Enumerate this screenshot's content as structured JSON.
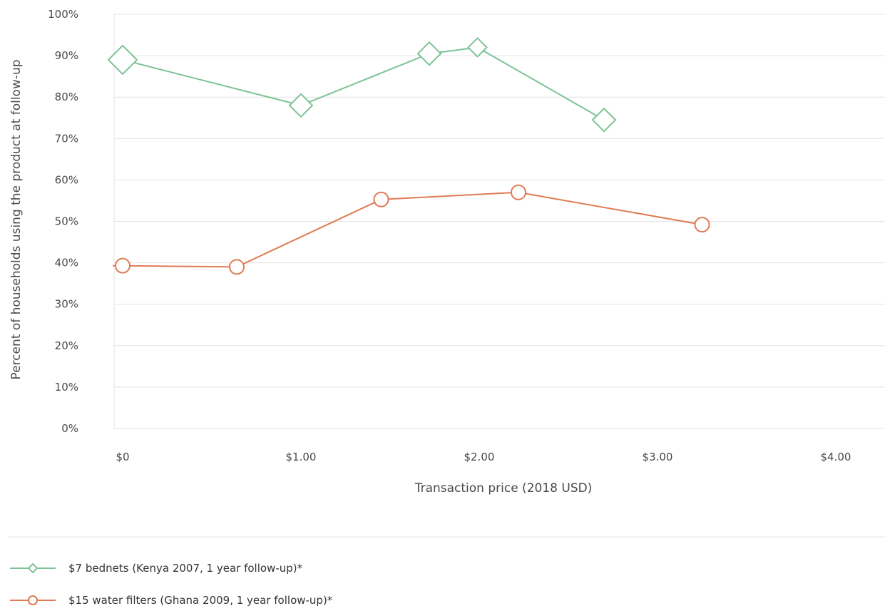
{
  "chart_data": {
    "type": "line",
    "title": "",
    "xlabel": "Transaction price (2018 USD)",
    "ylabel": "Percent of households using the product at follow-up",
    "xlim": [
      0,
      4.2
    ],
    "ylim": [
      0,
      100
    ],
    "x_ticks": [
      0,
      1,
      2,
      3,
      4
    ],
    "x_tick_labels": [
      "$0",
      "$1.00",
      "$2.00",
      "$3.00",
      "$4.00"
    ],
    "y_ticks": [
      0,
      10,
      20,
      30,
      40,
      50,
      60,
      70,
      80,
      90,
      100
    ],
    "y_tick_labels": [
      "0%",
      "10%",
      "20%",
      "30%",
      "40%",
      "50%",
      "60%",
      "70%",
      "80%",
      "90%",
      "100%"
    ],
    "grid": true,
    "legend_position": "bottom-left",
    "series": [
      {
        "name": "$7 bednets (Kenya 2007, 1 year follow-up)*",
        "marker": "diamond",
        "color": "#7dc396",
        "x": [
          0,
          1.0,
          1.72,
          1.99,
          2.7
        ],
        "y": [
          89,
          78,
          90.5,
          92,
          74.5
        ]
      },
      {
        "name": "$15 water filters (Ghana 2009, 1 year follow-up)*",
        "marker": "circle",
        "color": "#e07b54",
        "x": [
          0,
          0.64,
          1.45,
          2.22,
          3.25
        ],
        "y": [
          39.3,
          39,
          55.3,
          57,
          49.2
        ]
      }
    ]
  }
}
